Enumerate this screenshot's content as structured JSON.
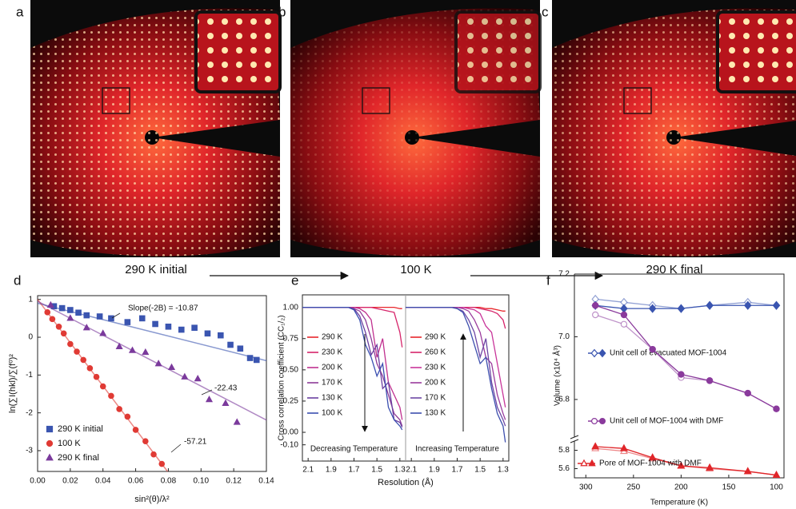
{
  "panels": [
    {
      "letter": "a",
      "caption": "290 K initial"
    },
    {
      "letter": "b",
      "caption": "100 K"
    },
    {
      "letter": "c",
      "caption": "290 K final"
    }
  ],
  "chart_data": [
    {
      "type": "scatter",
      "panel": "d",
      "xlabel": "sin²(θ)/λ²",
      "ylabel": "ln(∑I(hkl)/∑(f⁰)²",
      "xlim": [
        0,
        0.14
      ],
      "ylim": [
        -3.55,
        1.1
      ],
      "xticks": [
        {
          "value": 0,
          "label": "0.00"
        },
        {
          "value": 0.02,
          "label": "0.02"
        },
        {
          "value": 0.04,
          "label": "0.04"
        },
        {
          "value": 0.06,
          "label": "0.06"
        },
        {
          "value": 0.08,
          "label": "0.08"
        },
        {
          "value": 0.1,
          "label": "0.10"
        },
        {
          "value": 0.12,
          "label": "0.12"
        },
        {
          "value": 0.14,
          "label": "0.14"
        }
      ],
      "yticks": [
        -3,
        -2,
        -1,
        0,
        1
      ],
      "legend": "lower left",
      "series": [
        {
          "name": "290 K initial",
          "color": "#3a55b0",
          "marker": "square",
          "annotation": "Slope(-2B) = -10.87",
          "x": [
            0.01,
            0.015,
            0.02,
            0.025,
            0.03,
            0.038,
            0.045,
            0.055,
            0.064,
            0.072,
            0.08,
            0.088,
            0.096,
            0.104,
            0.112,
            0.118,
            0.124,
            0.13,
            0.134
          ],
          "values": [
            0.82,
            0.77,
            0.72,
            0.65,
            0.58,
            0.55,
            0.5,
            0.4,
            0.5,
            0.35,
            0.28,
            0.2,
            0.25,
            0.1,
            0.05,
            -0.2,
            -0.3,
            -0.55,
            -0.6
          ],
          "fit": {
            "x": [
              0,
              0.14
            ],
            "y": [
              0.9,
              -0.62
            ]
          }
        },
        {
          "name": "100 K",
          "color": "#e03a34",
          "marker": "circle",
          "annotation": "-57.21",
          "x": [
            0.006,
            0.009,
            0.013,
            0.016,
            0.02,
            0.024,
            0.028,
            0.032,
            0.036,
            0.04,
            0.045,
            0.05,
            0.055,
            0.06,
            0.066,
            0.071,
            0.076
          ],
          "values": [
            0.66,
            0.48,
            0.28,
            0.1,
            -0.18,
            -0.38,
            -0.6,
            -0.82,
            -1.05,
            -1.3,
            -1.55,
            -1.9,
            -2.1,
            -2.45,
            -2.75,
            -3.1,
            -3.35
          ],
          "fit": {
            "x": [
              0,
              0.0795
            ],
            "y": [
              1.0,
              -3.55
            ]
          }
        },
        {
          "name": "290 K final",
          "color": "#7b3a9c",
          "marker": "triangle",
          "annotation": "-22.43",
          "x": [
            0.008,
            0.02,
            0.03,
            0.04,
            0.05,
            0.058,
            0.066,
            0.074,
            0.082,
            0.09,
            0.098,
            0.105,
            0.115,
            0.122
          ],
          "values": [
            0.85,
            0.5,
            0.25,
            0.1,
            -0.25,
            -0.35,
            -0.4,
            -0.7,
            -0.8,
            -1.05,
            -1.1,
            -1.65,
            -1.75,
            -2.25
          ],
          "fit": {
            "x": [
              0,
              0.14
            ],
            "y": [
              0.95,
              -2.19
            ]
          }
        }
      ]
    },
    {
      "type": "line",
      "panel": "e",
      "xlabel": "Resolution (Å)",
      "ylabel": "Cross correlation coefficient (CC₁/₂)",
      "xlim": [
        2.15,
        1.25
      ],
      "ylim": [
        -0.23,
        1.1
      ],
      "xticks": [
        2.1,
        1.9,
        1.7,
        1.5,
        1.3
      ],
      "yticks": [
        {
          "value": -0.1,
          "label": "-0.10"
        },
        {
          "value": 0,
          "label": "0.00"
        },
        {
          "value": 0.25,
          "label": "0.25"
        },
        {
          "value": 0.5,
          "label": "0.50"
        },
        {
          "value": 0.75,
          "label": "0.75"
        },
        {
          "value": 1,
          "label": "1.00"
        }
      ],
      "groups": [
        {
          "title": "Decreasing Temperature",
          "x": [
            2.15,
            2.0,
            1.85,
            1.75,
            1.7,
            1.65,
            1.6,
            1.55,
            1.5,
            1.45,
            1.4,
            1.35,
            1.3,
            1.28
          ],
          "series": [
            {
              "name": "290 K",
              "color": "#e8262b",
              "values": [
                1,
                1,
                1,
                1,
                1,
                1,
                1,
                1,
                1,
                1,
                1,
                1,
                0.99,
                0.99
              ]
            },
            {
              "name": "230 K",
              "color": "#d6246a",
              "values": [
                1,
                1,
                1,
                1,
                1,
                1,
                1,
                1,
                0.99,
                0.98,
                0.97,
                0.96,
                0.8,
                0.68
              ]
            },
            {
              "name": "200 K",
              "color": "#c0308f",
              "values": [
                1,
                1,
                1,
                1,
                1,
                0.99,
                0.96,
                0.9,
                0.6,
                0.75,
                0.4,
                0.3,
                0.2,
                0.1
              ]
            },
            {
              "name": "170 K",
              "color": "#8e3a98",
              "values": [
                1,
                1,
                1,
                1,
                0.99,
                0.97,
                0.9,
                0.75,
                0.55,
                0.45,
                0.3,
                0.15,
                0.1,
                0.05
              ]
            },
            {
              "name": "130 K",
              "color": "#6b3fa0",
              "values": [
                1,
                1,
                1,
                1,
                0.99,
                0.93,
                0.8,
                0.62,
                0.7,
                0.35,
                0.4,
                0.1,
                0.08,
                0.04
              ]
            },
            {
              "name": "100 K",
              "color": "#3a4fb0",
              "values": [
                1,
                1,
                1,
                1,
                0.98,
                0.9,
                0.7,
                0.6,
                0.45,
                0.55,
                0.2,
                0.1,
                0.05,
                0.02
              ]
            }
          ]
        },
        {
          "title": "Increasing Temperature",
          "x": [
            2.15,
            2.0,
            1.85,
            1.75,
            1.7,
            1.65,
            1.6,
            1.55,
            1.5,
            1.45,
            1.4,
            1.35,
            1.3,
            1.28
          ],
          "series": [
            {
              "name": "290 K",
              "color": "#e8262b",
              "values": [
                1,
                1,
                1,
                1,
                1,
                1,
                1,
                1,
                1,
                0.99,
                0.99,
                0.98,
                0.97,
                0.97
              ]
            },
            {
              "name": "260 K",
              "color": "#d6246a",
              "values": [
                1,
                1,
                1,
                1,
                1,
                1,
                1,
                1,
                0.99,
                0.98,
                0.97,
                0.95,
                0.9,
                0.83
              ]
            },
            {
              "name": "230 K",
              "color": "#c8359a",
              "values": [
                1,
                1,
                1,
                1,
                1,
                1,
                0.99,
                0.98,
                0.95,
                0.85,
                0.8,
                0.55,
                0.3,
                0.2
              ]
            },
            {
              "name": "200 K",
              "color": "#9a3a9c",
              "values": [
                1,
                1,
                1,
                1,
                1,
                0.99,
                0.97,
                0.9,
                0.8,
                0.6,
                0.55,
                0.3,
                0.15,
                0.1
              ]
            },
            {
              "name": "170 K",
              "color": "#6d47a5",
              "values": [
                1,
                1,
                1,
                1,
                0.99,
                0.97,
                0.9,
                0.8,
                0.6,
                0.75,
                0.4,
                0.2,
                0.1,
                0.05
              ]
            },
            {
              "name": "130 K",
              "color": "#3d4fae",
              "values": [
                1,
                1,
                1,
                1,
                0.99,
                0.96,
                0.85,
                0.7,
                0.55,
                0.6,
                0.35,
                0.15,
                0.05,
                -0.08
              ]
            }
          ]
        }
      ]
    },
    {
      "type": "broken-line",
      "panel": "f",
      "xlabel": "Temperature (K)",
      "ylabel": "Volume (x10⁴ Å³)",
      "xlim": [
        312,
        92
      ],
      "xticks": [
        300,
        250,
        200,
        150,
        100
      ],
      "ylims": [
        [
          5.5,
          5.9
        ],
        [
          6.68,
          7.2
        ]
      ],
      "yticks": [
        [
          5.6,
          5.8
        ],
        [
          6.8,
          {
            "value": 7,
            "label": "7.0"
          },
          7.2
        ]
      ],
      "x": [
        290,
        260,
        230,
        200,
        170,
        130,
        100
      ],
      "series": [
        {
          "name": "Unit cell of evacuated MOF-1004",
          "color": "#3a55b0",
          "marker": "diamond",
          "values": [
            7.1,
            7.09,
            7.09,
            7.09,
            7.1,
            7.1,
            7.1
          ],
          "open_values": [
            7.12,
            7.11,
            7.1,
            7.09,
            7.1,
            7.11,
            7.1
          ]
        },
        {
          "name": "Unit cell of MOF-1004 with DMF",
          "color": "#8a3a9c",
          "marker": "circle",
          "values": [
            7.1,
            7.07,
            6.96,
            6.88,
            6.86,
            6.82,
            6.77
          ],
          "open_values": [
            7.07,
            7.04,
            6.96,
            6.87,
            6.86,
            6.82,
            6.77
          ]
        },
        {
          "name": "Pore of MOF-1004 with DMF",
          "color": "#e0262a",
          "marker": "triangle",
          "values": [
            5.84,
            5.82,
            5.72,
            5.63,
            5.61,
            5.57,
            5.53
          ],
          "open_values": [
            5.82,
            5.79,
            5.71,
            5.63,
            5.6,
            5.57,
            5.53
          ]
        }
      ]
    }
  ]
}
